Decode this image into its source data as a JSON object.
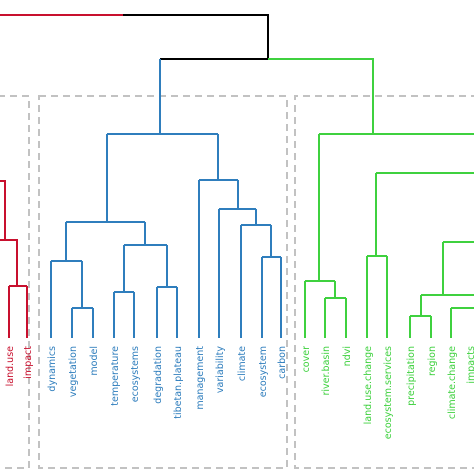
{
  "colors": {
    "root": "#000000",
    "red_cluster": "#c8102e",
    "blue_cluster": "#2f7ebd",
    "green_cluster": "#3fd13f",
    "dashed_box": "#c2c2c2"
  },
  "clusters": {
    "red": {
      "labels": [
        "land.use",
        "impact"
      ]
    },
    "blue": {
      "labels": [
        "dynamics",
        "vegetation",
        "model",
        "temperature",
        "ecosystems",
        "degradation",
        "tibetan.plateau",
        "management",
        "variability",
        "climate",
        "ecosystem",
        "carbon"
      ]
    },
    "green": {
      "labels": [
        "cover",
        "river.basin",
        "ndvi",
        "land.use.change",
        "ecosystem.services",
        "precipitation",
        "region",
        "climate.change",
        "impacts"
      ]
    }
  }
}
